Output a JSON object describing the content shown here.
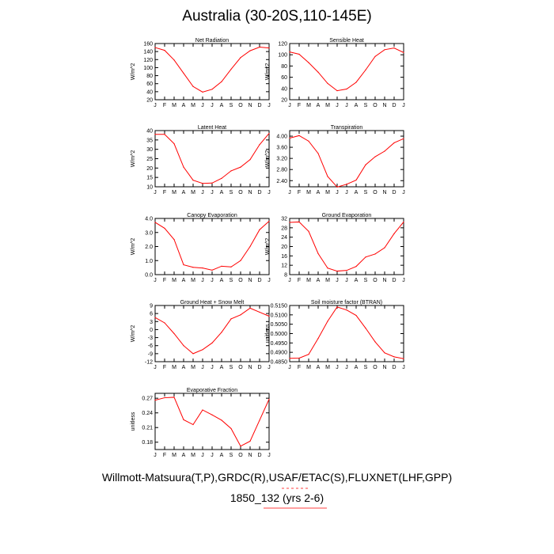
{
  "title": "Australia (30-20S,110-145E)",
  "footer_line1": "Willmott-Matsuura(T,P),GRDC(R),USAF/ETAC(S),FLUXNET(LHF,GPP)",
  "footer_line2": "1850_132 (yrs 2-6)",
  "colors": {
    "series": "#ff0000",
    "axis": "#000000",
    "underline": "#ff0000"
  },
  "chart_data": [
    {
      "type": "line",
      "title": "Net Radiation",
      "ylabel": "W/m^2",
      "x": [
        "J",
        "F",
        "M",
        "A",
        "M",
        "J",
        "J",
        "A",
        "S",
        "O",
        "N",
        "D",
        "J"
      ],
      "values": [
        150,
        143,
        119,
        86,
        53,
        39,
        46,
        65,
        96,
        125,
        142,
        151,
        149
      ],
      "ylim": [
        20,
        160
      ],
      "yticks": [
        20,
        40,
        60,
        80,
        100,
        120,
        140,
        160
      ],
      "ytick_labels": [
        "20",
        "40",
        "60",
        "80",
        "100",
        "120",
        "140",
        "160"
      ]
    },
    {
      "type": "line",
      "title": "Sensible Heat",
      "ylabel": "W/m^2",
      "x": [
        "J",
        "F",
        "M",
        "A",
        "M",
        "J",
        "J",
        "A",
        "S",
        "O",
        "N",
        "D",
        "J"
      ],
      "values": [
        105,
        101,
        86,
        69,
        49,
        36,
        39,
        51,
        73,
        97,
        109,
        112,
        104
      ],
      "ylim": [
        20,
        120
      ],
      "yticks": [
        20,
        40,
        60,
        80,
        100,
        120
      ],
      "ytick_labels": [
        "20",
        "40",
        "60",
        "80",
        "100",
        "120"
      ]
    },
    {
      "type": "line",
      "title": "Latent Heat",
      "ylabel": "W/m^2",
      "x": [
        "J",
        "F",
        "M",
        "A",
        "M",
        "J",
        "J",
        "A",
        "S",
        "O",
        "N",
        "D",
        "J"
      ],
      "values": [
        38,
        38,
        33,
        20.5,
        13.5,
        11.8,
        12,
        14.5,
        18.5,
        20.5,
        24.5,
        32.5,
        38.5
      ],
      "ylim": [
        10,
        40
      ],
      "yticks": [
        10,
        15,
        20,
        25,
        30,
        35,
        40
      ],
      "ytick_labels": [
        "10",
        "15",
        "20",
        "25",
        "30",
        "35",
        "40"
      ]
    },
    {
      "type": "line",
      "title": "Transpiration",
      "ylabel": "W/m^2",
      "x": [
        "J",
        "F",
        "M",
        "A",
        "M",
        "J",
        "J",
        "A",
        "S",
        "O",
        "N",
        "D",
        "J"
      ],
      "values": [
        3.93,
        4.02,
        3.82,
        3.38,
        2.55,
        2.17,
        2.27,
        2.42,
        2.97,
        3.26,
        3.46,
        3.76,
        3.91
      ],
      "ylim": [
        2.18,
        4.2
      ],
      "yticks": [
        2.4,
        2.8,
        3.2,
        3.6,
        4.0
      ],
      "ytick_labels": [
        "2.40",
        "2.80",
        "3.20",
        "3.60",
        "4.00"
      ]
    },
    {
      "type": "line",
      "title": "Canopy Evaporation",
      "ylabel": "W/m^2",
      "x": [
        "J",
        "F",
        "M",
        "A",
        "M",
        "J",
        "J",
        "A",
        "S",
        "O",
        "N",
        "D",
        "J"
      ],
      "values": [
        3.72,
        3.3,
        2.5,
        0.7,
        0.52,
        0.47,
        0.32,
        0.6,
        0.55,
        1.0,
        2.0,
        3.2,
        3.8
      ],
      "ylim": [
        0,
        4
      ],
      "yticks": [
        0,
        1,
        2,
        3,
        4
      ],
      "ytick_labels": [
        "0.0",
        "1.0",
        "2.0",
        "3.0",
        "4.0"
      ]
    },
    {
      "type": "line",
      "title": "Ground Evaporation",
      "ylabel": "W/m^2",
      "x": [
        "J",
        "F",
        "M",
        "A",
        "M",
        "J",
        "J",
        "A",
        "S",
        "O",
        "N",
        "D",
        "J"
      ],
      "values": [
        30.3,
        30.5,
        26.5,
        17,
        10.8,
        9.5,
        9.8,
        11.5,
        15.5,
        16.8,
        19.5,
        25.5,
        30.5
      ],
      "ylim": [
        8,
        32
      ],
      "yticks": [
        8,
        12,
        16,
        20,
        24,
        28,
        32
      ],
      "ytick_labels": [
        "8",
        "12",
        "16",
        "20",
        "24",
        "28",
        "32"
      ]
    },
    {
      "type": "line",
      "title": "Ground Heat + Snow Melt",
      "ylabel": "W/m^2",
      "x": [
        "J",
        "F",
        "M",
        "A",
        "M",
        "J",
        "J",
        "A",
        "S",
        "O",
        "N",
        "D",
        "J"
      ],
      "values": [
        4.5,
        2.5,
        -1.5,
        -6,
        -9,
        -7.5,
        -5,
        -1,
        4,
        5.5,
        8,
        6.5,
        5
      ],
      "ylim": [
        -12,
        9
      ],
      "yticks": [
        -12,
        -9,
        -6,
        -3,
        0,
        3,
        6,
        9
      ],
      "ytick_labels": [
        "-12",
        "-9",
        "-6",
        "-3",
        "0",
        "3",
        "6",
        "9"
      ]
    },
    {
      "type": "line",
      "title": "Soil moisture factor (BTRAN)",
      "ylabel": "unitless",
      "x": [
        "J",
        "F",
        "M",
        "A",
        "M",
        "J",
        "J",
        "A",
        "S",
        "O",
        "N",
        "D",
        "J"
      ],
      "values": [
        0.4868,
        0.4869,
        0.4889,
        0.4974,
        0.5066,
        0.5142,
        0.5126,
        0.5097,
        0.5029,
        0.4956,
        0.4897,
        0.4876,
        0.4866
      ],
      "ylim": [
        0.485,
        0.515
      ],
      "yticks": [
        0.485,
        0.49,
        0.495,
        0.5,
        0.505,
        0.51,
        0.515
      ],
      "ytick_labels": [
        "0.4850",
        "0.4900",
        "0.4950",
        "0.5000",
        "0.5050",
        "0.5100",
        "0.5150"
      ]
    },
    {
      "type": "line",
      "title": "Evaporative Fraction",
      "ylabel": "unitless",
      "x": [
        "J",
        "F",
        "M",
        "A",
        "M",
        "J",
        "J",
        "A",
        "S",
        "O",
        "N",
        "D",
        "J"
      ],
      "values": [
        0.266,
        0.271,
        0.272,
        0.226,
        0.216,
        0.246,
        0.236,
        0.225,
        0.208,
        0.172,
        0.182,
        0.225,
        0.268
      ],
      "ylim": [
        0.165,
        0.28
      ],
      "yticks": [
        0.18,
        0.21,
        0.24,
        0.27
      ],
      "ytick_labels": [
        "0.18",
        "0.21",
        "0.24",
        "0.27"
      ]
    }
  ]
}
